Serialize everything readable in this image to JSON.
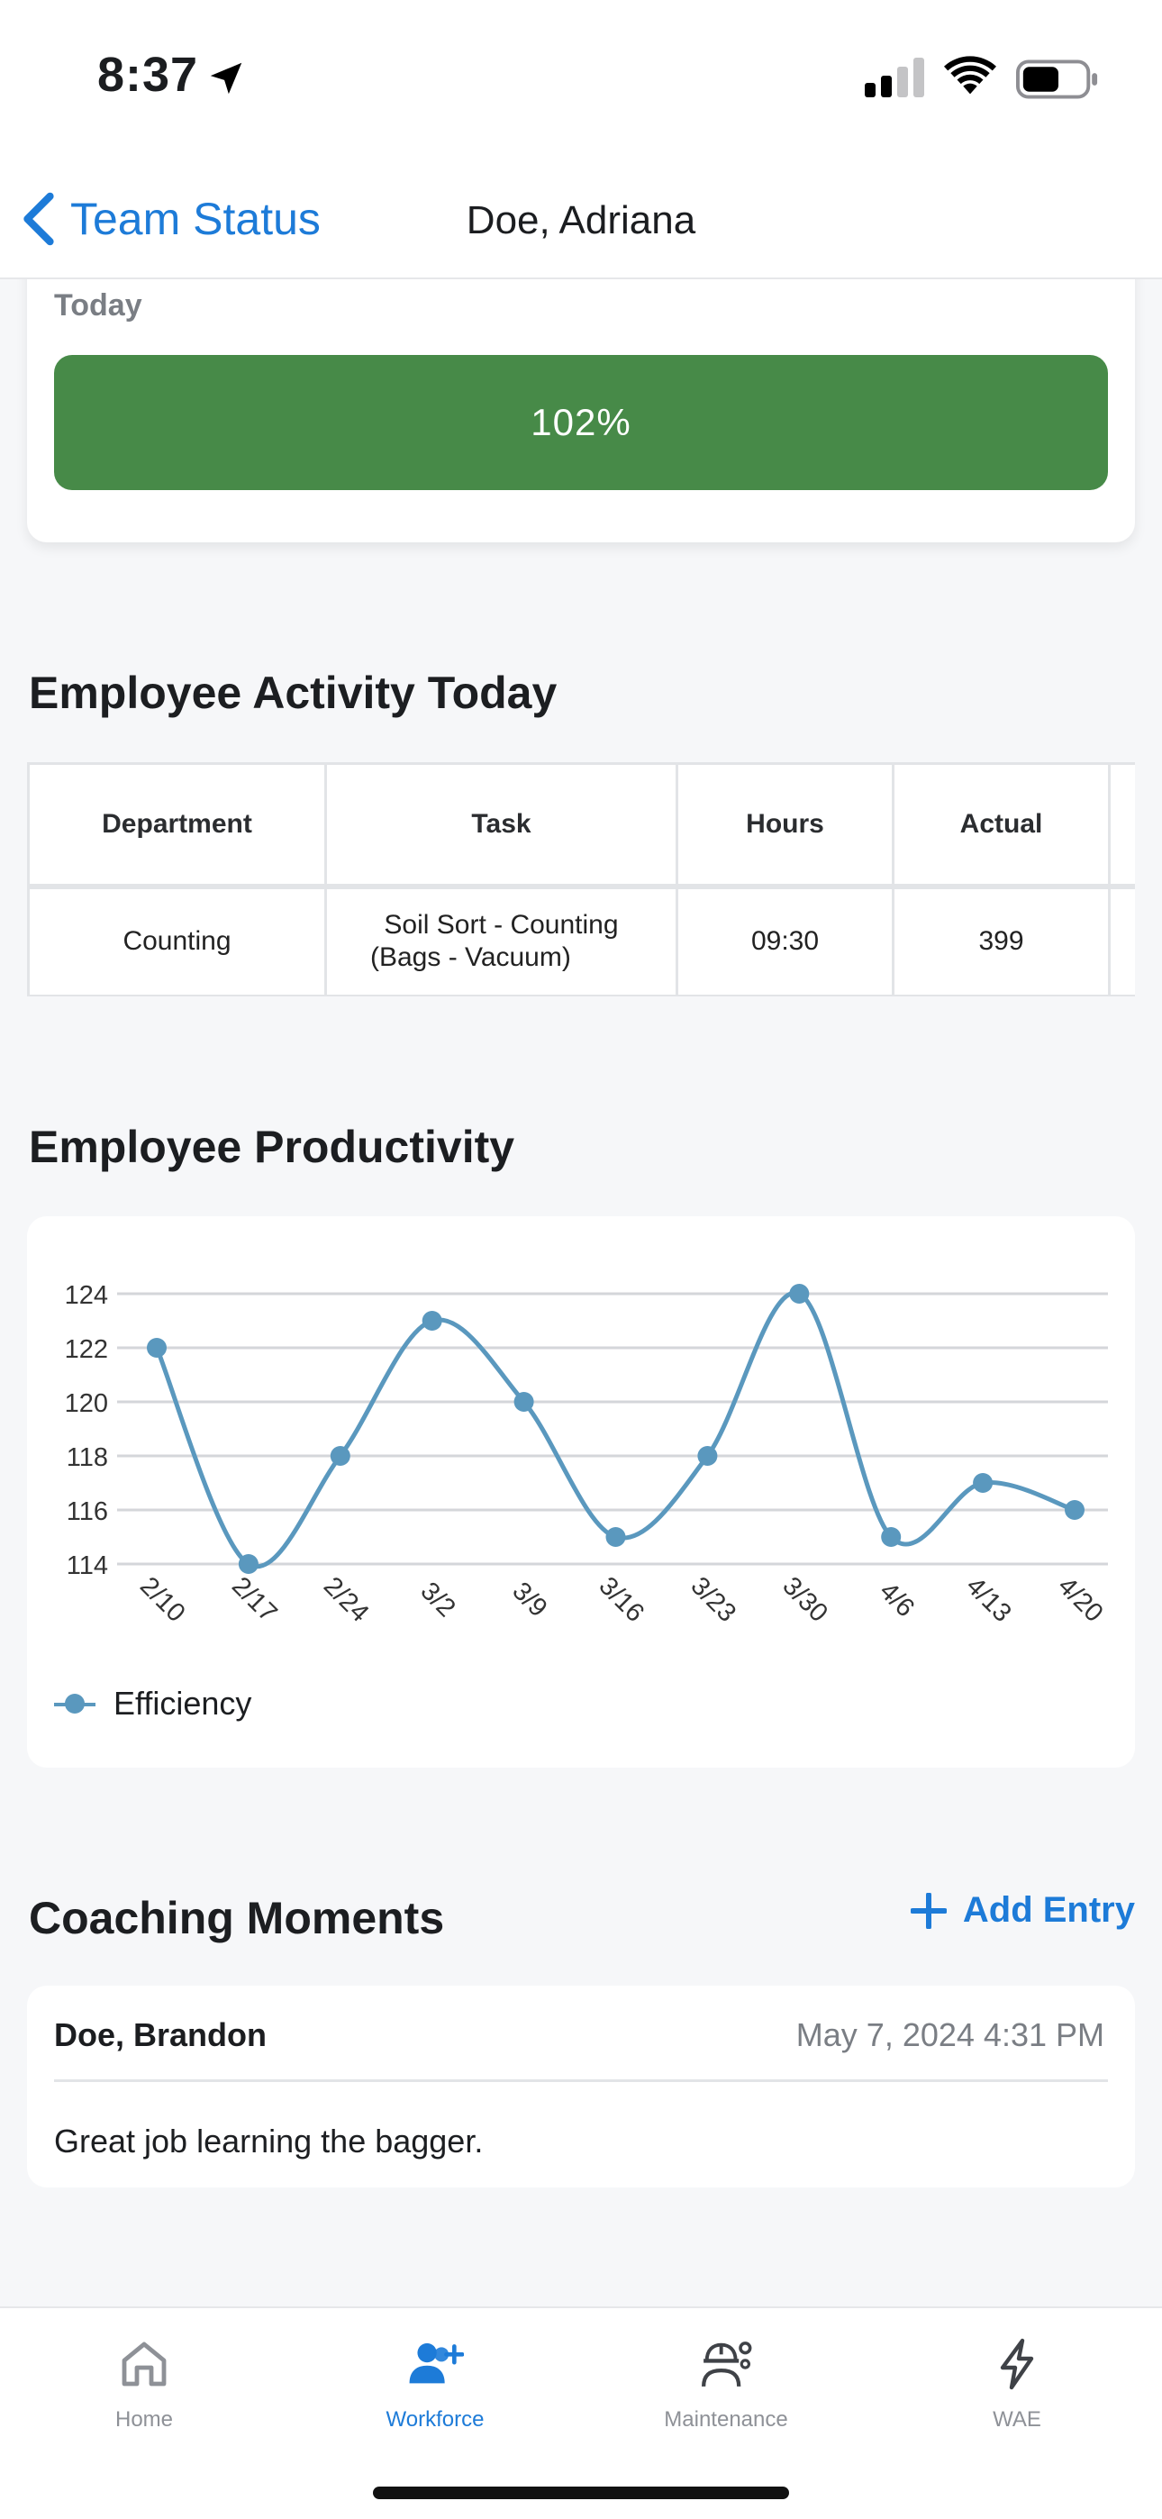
{
  "status_bar": {
    "time": "8:37"
  },
  "nav": {
    "back_label": "Team Status",
    "title": "Doe, Adriana"
  },
  "today": {
    "label": "Today",
    "percent": "102%",
    "bar_color": "#478a48"
  },
  "activity": {
    "title": "Employee Activity Today",
    "columns": [
      "Department",
      "Task",
      "Hours",
      "Actual",
      ""
    ],
    "rows": [
      {
        "department": "Counting",
        "task_line1": "Soil Sort - Counting",
        "task_line2": "(Bags - Vacuum)",
        "hours": "09:30",
        "actual": "399",
        "extra": ""
      }
    ]
  },
  "productivity": {
    "title": "Employee Productivity",
    "legend": "Efficiency"
  },
  "chart_data": {
    "type": "line",
    "x": [
      "2/10",
      "2/17",
      "2/24",
      "3/2",
      "3/9",
      "3/16",
      "3/23",
      "3/30",
      "4/6",
      "4/13",
      "4/20"
    ],
    "series": [
      {
        "name": "Efficiency",
        "values": [
          122,
          114,
          118,
          123,
          120,
          115,
          118,
          124,
          115,
          117,
          116
        ]
      }
    ],
    "yticks": [
      114,
      116,
      118,
      120,
      122,
      124
    ],
    "ylim": [
      114,
      124
    ],
    "grid": true,
    "legend_position": "bottom-left",
    "line_color": "#5a98be"
  },
  "coaching": {
    "title": "Coaching Moments",
    "add_label": "Add Entry",
    "entries": [
      {
        "name": "Doe, Brandon",
        "date": "May 7, 2024 4:31 PM",
        "text": "Great job learning the bagger."
      }
    ]
  },
  "tabs": [
    {
      "label": "Home",
      "icon": "home-icon",
      "active": false
    },
    {
      "label": "Workforce",
      "icon": "workforce-icon",
      "active": true
    },
    {
      "label": "Maintenance",
      "icon": "maintenance-icon",
      "active": false
    },
    {
      "label": "WAE",
      "icon": "lightning-icon",
      "active": false
    }
  ],
  "accent_color": "#1d7bd8"
}
